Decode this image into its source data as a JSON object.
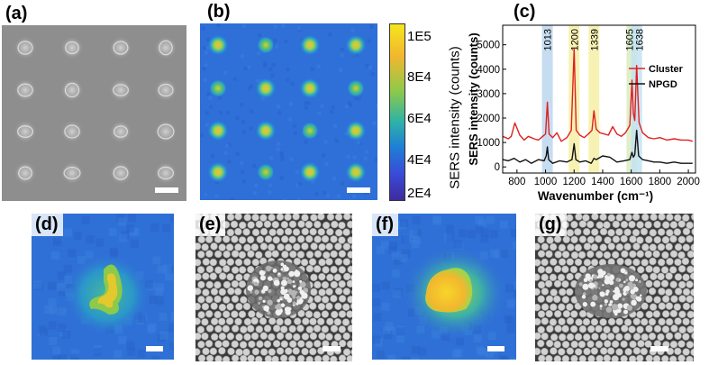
{
  "panels": {
    "a": {
      "label": "(a)"
    },
    "b": {
      "label": "(b)"
    },
    "c": {
      "label": "(c)"
    },
    "d": {
      "label": "(d)"
    },
    "e": {
      "label": "(e)"
    },
    "f": {
      "label": "(f)"
    },
    "g": {
      "label": "(g)"
    }
  },
  "colorbar": {
    "title": "SERS intensity (counts)",
    "ticks": [
      "1E5",
      "8E4",
      "6E4",
      "4E4",
      "2E4"
    ],
    "colors": [
      "#f5e61e",
      "#f2b72e",
      "#8dc94a",
      "#2fb3a6",
      "#1e7fd6",
      "#3a4bd8",
      "#3f2a9e"
    ]
  },
  "heatmap_colors": {
    "background": "#2f6fd8",
    "spot_low": "#2aa7c8",
    "spot_mid": "#5fc46a",
    "spot_high": "#f2c230"
  },
  "chart_data": {
    "type": "line",
    "xlabel": "Wavenumber (cm⁻¹)",
    "ylabel": "SERS intensity (counts)",
    "xlim": [
      700,
      2050
    ],
    "ylim": [
      -250,
      5800
    ],
    "xticks": [
      800,
      1000,
      1200,
      1400,
      1600,
      1800,
      2000
    ],
    "yticks": [
      0,
      1000,
      2000,
      3000,
      4000,
      5000
    ],
    "peaks": [
      {
        "label": "1013",
        "x": 1013,
        "color": "#bcd7ee"
      },
      {
        "label": "1200",
        "x": 1200,
        "color": "#f6f0a6"
      },
      {
        "label": "1339",
        "x": 1339,
        "color": "#f6f0a6"
      },
      {
        "label": "1605",
        "x": 1605,
        "color": "#d9ecc0"
      },
      {
        "label": "1638",
        "x": 1638,
        "color": "#c4e2f2"
      }
    ],
    "series": [
      {
        "name": "Cluster",
        "color": "#e02020",
        "x": [
          700,
          740,
          760,
          785,
          820,
          850,
          880,
          920,
          950,
          980,
          1000,
          1013,
          1025,
          1050,
          1080,
          1110,
          1150,
          1180,
          1200,
          1215,
          1240,
          1270,
          1300,
          1325,
          1339,
          1355,
          1380,
          1410,
          1440,
          1470,
          1500,
          1530,
          1560,
          1590,
          1605,
          1615,
          1625,
          1638,
          1655,
          1680,
          1720,
          1760,
          1800,
          1850,
          1900,
          1950,
          2000,
          2030
        ],
        "y": [
          1250,
          1150,
          1250,
          1800,
          1300,
          1100,
          1250,
          1150,
          1100,
          1250,
          1350,
          2650,
          1350,
          1200,
          1400,
          1050,
          1200,
          1500,
          4850,
          1500,
          1300,
          1200,
          1350,
          1500,
          2300,
          1550,
          1400,
          1350,
          1300,
          1650,
          1350,
          1250,
          1400,
          1700,
          3550,
          2200,
          1900,
          4150,
          1800,
          1400,
          1200,
          1150,
          1200,
          1100,
          1150,
          1100,
          1100,
          1050
        ]
      },
      {
        "name": "NPGD",
        "color": "#111111",
        "x": [
          700,
          740,
          780,
          820,
          860,
          900,
          950,
          990,
          1005,
          1013,
          1022,
          1050,
          1100,
          1150,
          1185,
          1200,
          1212,
          1240,
          1280,
          1320,
          1339,
          1355,
          1400,
          1450,
          1500,
          1550,
          1590,
          1605,
          1615,
          1625,
          1638,
          1652,
          1680,
          1720,
          1760,
          1800,
          1850,
          1900,
          1950,
          2000,
          2030
        ],
        "y": [
          300,
          250,
          350,
          200,
          300,
          150,
          300,
          250,
          450,
          820,
          300,
          150,
          250,
          200,
          300,
          950,
          300,
          200,
          250,
          150,
          350,
          300,
          450,
          400,
          200,
          250,
          300,
          600,
          400,
          500,
          1500,
          450,
          300,
          250,
          200,
          200,
          150,
          200,
          150,
          150,
          150
        ]
      }
    ],
    "legend": {
      "placement": "right",
      "entries": [
        "Cluster",
        "NPGD"
      ]
    }
  }
}
